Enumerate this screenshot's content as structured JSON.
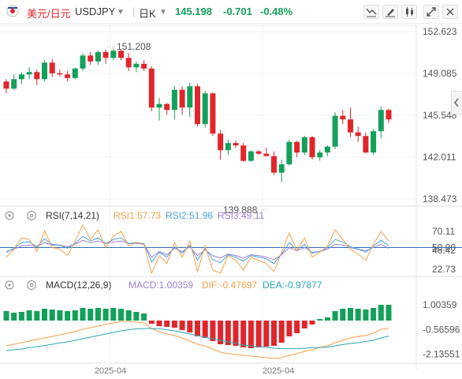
{
  "toolbar": {
    "flag_icon": "us-jp-flag-icon",
    "pair_name": "美元/日元",
    "symbol": "USDJPY",
    "period": "日K",
    "price": "145.198",
    "change": "-0.701",
    "change_pct": "-0.48%",
    "colors": {
      "up": "#e0262d",
      "down": "#e0262d",
      "name": "#e0262d"
    },
    "right_icons": [
      "indicator-icon",
      "draw-pen-icon",
      "candle-type-icon",
      "expand-icon",
      "settings-icon"
    ]
  },
  "price_axis": {
    "ticks": [
      "152.623",
      "149.085",
      "145.548",
      "142.011",
      "138.473"
    ],
    "tick_values": [
      152.623,
      149.085,
      145.548,
      142.011,
      138.473
    ],
    "high_label": "151.208",
    "low_label": "139.888"
  },
  "rsi": {
    "title": "RSI(7,14,21)",
    "rsi1": "RSI1:57.73",
    "rsi2": "RSI2:51.96",
    "rsi3": "RSI3:49.11",
    "ticks": [
      "70.11",
      "50.00",
      "46.42",
      "22.73"
    ],
    "tick_values": [
      70.11,
      50.0,
      46.42,
      22.73
    ],
    "colors": {
      "rsi1": "#f5a04a",
      "rsi2": "#4aa3df",
      "rsi3": "#9b7fd6"
    }
  },
  "macd": {
    "title": "MACD(12,26,9)",
    "macd": "MACD:1.00359",
    "dif": "DIF:-0.47697",
    "dea": "DEA:-0.97877",
    "ticks": [
      "1.00359",
      "-0.56596",
      "-2.13551"
    ],
    "tick_values": [
      1.00359,
      -0.56596,
      -2.13551
    ],
    "colors": {
      "macd": "#9b7fd6",
      "dif": "#f5a04a",
      "dea": "#2aa6b8",
      "pos": "#13a05a",
      "neg": "#e0262d"
    }
  },
  "x_axis": {
    "labels": [
      "2025-04",
      "2025-04"
    ]
  },
  "chart_data": {
    "type": "candlestick",
    "colors": {
      "up": "#13a05a",
      "down": "#e0262d"
    },
    "ohlc": [
      [
        148.4,
        148.6,
        147.4,
        147.8
      ],
      [
        147.8,
        149.0,
        147.7,
        148.6
      ],
      [
        148.6,
        149.2,
        148.2,
        149.0
      ],
      [
        149.0,
        149.6,
        148.6,
        149.2
      ],
      [
        149.2,
        149.4,
        148.1,
        148.6
      ],
      [
        148.6,
        150.2,
        148.4,
        150.0
      ],
      [
        150.0,
        150.3,
        148.8,
        149.1
      ],
      [
        149.1,
        149.4,
        148.8,
        149.0
      ],
      [
        149.0,
        149.3,
        148.4,
        148.7
      ],
      [
        148.7,
        149.6,
        148.6,
        149.5
      ],
      [
        149.5,
        150.8,
        149.3,
        150.6
      ],
      [
        150.6,
        150.9,
        149.8,
        150.1
      ],
      [
        150.1,
        151.0,
        149.8,
        150.9
      ],
      [
        150.9,
        151.1,
        149.9,
        150.4
      ],
      [
        150.4,
        151.2,
        150.2,
        151.0
      ],
      [
        151.0,
        151.1,
        150.2,
        150.4
      ],
      [
        150.4,
        150.8,
        149.3,
        149.6
      ],
      [
        149.6,
        150.1,
        149.2,
        149.9
      ],
      [
        149.9,
        150.2,
        149.3,
        149.5
      ],
      [
        149.5,
        149.7,
        145.9,
        146.2
      ],
      [
        146.2,
        147.0,
        145.1,
        146.5
      ],
      [
        146.5,
        146.6,
        145.6,
        146.0
      ],
      [
        146.0,
        148.0,
        145.2,
        147.7
      ],
      [
        147.7,
        148.0,
        145.6,
        146.2
      ],
      [
        146.2,
        148.3,
        145.4,
        148.0
      ],
      [
        148.0,
        148.2,
        144.6,
        144.8
      ],
      [
        144.8,
        147.6,
        144.5,
        147.4
      ],
      [
        147.4,
        147.5,
        143.8,
        144.0
      ],
      [
        144.0,
        144.3,
        141.8,
        142.6
      ],
      [
        142.6,
        143.5,
        142.2,
        143.2
      ],
      [
        143.2,
        143.4,
        142.8,
        143.0
      ],
      [
        143.0,
        143.2,
        141.6,
        141.7
      ],
      [
        141.7,
        142.6,
        141.6,
        142.5
      ],
      [
        142.5,
        142.6,
        142.2,
        142.3
      ],
      [
        142.3,
        142.8,
        142.1,
        142.1
      ],
      [
        142.1,
        142.5,
        140.5,
        140.7
      ],
      [
        140.7,
        141.8,
        139.9,
        141.4
      ],
      [
        141.4,
        143.5,
        141.3,
        143.3
      ],
      [
        143.3,
        143.4,
        142.0,
        142.4
      ],
      [
        142.4,
        143.8,
        142.2,
        143.7
      ],
      [
        143.7,
        143.8,
        141.8,
        142.0
      ],
      [
        142.0,
        142.6,
        141.7,
        142.4
      ],
      [
        142.4,
        143.0,
        142.1,
        142.9
      ],
      [
        142.9,
        145.8,
        142.7,
        145.5
      ],
      [
        145.5,
        146.0,
        144.8,
        145.2
      ],
      [
        145.2,
        146.2,
        143.7,
        144.1
      ],
      [
        144.1,
        144.6,
        143.3,
        143.8
      ],
      [
        143.8,
        144.1,
        142.3,
        142.4
      ],
      [
        142.4,
        144.4,
        142.2,
        144.2
      ],
      [
        144.2,
        146.3,
        143.6,
        146.0
      ],
      [
        146.0,
        146.1,
        144.9,
        145.2
      ]
    ],
    "rsi1": [
      38,
      48,
      62,
      60,
      45,
      71,
      50,
      48,
      40,
      58,
      78,
      60,
      72,
      50,
      64,
      70,
      52,
      56,
      54,
      18,
      40,
      30,
      56,
      38,
      58,
      20,
      52,
      22,
      18,
      40,
      34,
      22,
      38,
      34,
      30,
      20,
      44,
      68,
      46,
      62,
      38,
      44,
      52,
      72,
      60,
      48,
      42,
      34,
      54,
      70,
      58
    ],
    "rsi2": [
      44,
      49,
      56,
      57,
      51,
      61,
      54,
      53,
      49,
      55,
      64,
      58,
      62,
      55,
      60,
      62,
      55,
      56,
      55,
      32,
      44,
      38,
      51,
      43,
      53,
      34,
      49,
      35,
      31,
      41,
      38,
      33,
      40,
      38,
      36,
      30,
      42,
      56,
      47,
      54,
      43,
      45,
      50,
      60,
      57,
      51,
      48,
      44,
      52,
      59,
      52
    ],
    "rsi3": [
      45,
      48,
      52,
      53,
      51,
      56,
      53,
      53,
      51,
      54,
      59,
      56,
      58,
      55,
      57,
      58,
      55,
      55,
      54,
      38,
      45,
      41,
      49,
      45,
      51,
      40,
      47,
      40,
      37,
      42,
      40,
      37,
      41,
      40,
      38,
      35,
      41,
      50,
      46,
      50,
      44,
      45,
      48,
      54,
      53,
      50,
      48,
      46,
      50,
      54,
      49
    ],
    "macd_hist": [
      0.6,
      0.5,
      0.55,
      0.65,
      0.6,
      0.75,
      0.7,
      0.65,
      0.6,
      0.65,
      0.8,
      0.75,
      0.8,
      0.75,
      0.8,
      0.75,
      0.65,
      0.55,
      0.45,
      -0.2,
      -0.35,
      -0.4,
      -0.45,
      -0.6,
      -0.75,
      -1.0,
      -1.1,
      -1.3,
      -1.5,
      -1.55,
      -1.6,
      -1.7,
      -1.75,
      -1.7,
      -1.65,
      -1.6,
      -1.4,
      -1.0,
      -0.8,
      -0.5,
      -0.25,
      0.1,
      0.2,
      0.6,
      0.75,
      0.8,
      0.75,
      0.7,
      0.8,
      1.0,
      1.0
    ],
    "dif": [
      -1.6,
      -1.5,
      -1.4,
      -1.3,
      -1.2,
      -1.1,
      -1.0,
      -0.9,
      -0.8,
      -0.7,
      -0.55,
      -0.45,
      -0.35,
      -0.25,
      -0.15,
      -0.05,
      -0.05,
      -0.1,
      -0.15,
      -0.5,
      -0.7,
      -0.85,
      -0.95,
      -1.1,
      -1.3,
      -1.5,
      -1.6,
      -1.8,
      -2.0,
      -2.1,
      -2.15,
      -2.2,
      -2.25,
      -2.3,
      -2.35,
      -2.4,
      -2.35,
      -2.2,
      -2.1,
      -1.95,
      -1.85,
      -1.7,
      -1.6,
      -1.4,
      -1.25,
      -1.1,
      -1.0,
      -0.95,
      -0.8,
      -0.55,
      -0.48
    ],
    "dea": [
      -1.9,
      -1.85,
      -1.8,
      -1.72,
      -1.65,
      -1.58,
      -1.5,
      -1.42,
      -1.35,
      -1.25,
      -1.15,
      -1.05,
      -0.95,
      -0.85,
      -0.75,
      -0.65,
      -0.58,
      -0.52,
      -0.5,
      -0.5,
      -0.52,
      -0.58,
      -0.65,
      -0.75,
      -0.85,
      -0.95,
      -1.05,
      -1.15,
      -1.25,
      -1.35,
      -1.45,
      -1.55,
      -1.6,
      -1.65,
      -1.7,
      -1.75,
      -1.78,
      -1.78,
      -1.78,
      -1.75,
      -1.72,
      -1.7,
      -1.68,
      -1.6,
      -1.52,
      -1.45,
      -1.4,
      -1.32,
      -1.25,
      -1.1,
      -0.98
    ]
  }
}
